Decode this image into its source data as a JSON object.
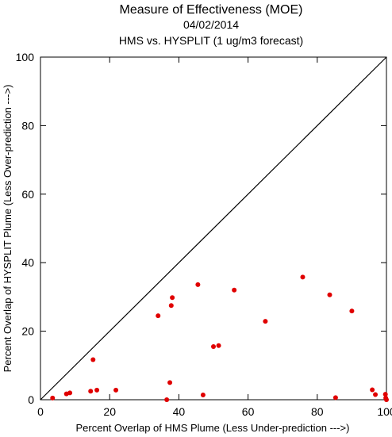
{
  "chart_data": {
    "type": "scatter",
    "title": "Measure of Effectiveness (MOE)",
    "subtitle_date": "04/02/2014",
    "subtitle": "HMS vs. HYSPLIT  (1 ug/m3 forecast)",
    "xlabel": "Percent Overlap of HMS Plume (Less Under-prediction --->)",
    "ylabel": "Percent Overlap of HYSPLIT Plume (Less Over-prediction --->)",
    "xlim": [
      0,
      100
    ],
    "ylim": [
      0,
      100
    ],
    "x_ticks": [
      "0",
      "20",
      "40",
      "60",
      "80",
      "100"
    ],
    "y_ticks": [
      "0",
      "20",
      "40",
      "60",
      "80",
      "100"
    ],
    "reference_line": "y = x",
    "marker_color": "#e00000",
    "grid": false,
    "points": [
      {
        "x": 3.5,
        "y": 0.5
      },
      {
        "x": 7.5,
        "y": 1.7
      },
      {
        "x": 8.5,
        "y": 2.0
      },
      {
        "x": 14.5,
        "y": 2.5
      },
      {
        "x": 15.2,
        "y": 11.7
      },
      {
        "x": 16.3,
        "y": 2.8
      },
      {
        "x": 21.8,
        "y": 2.8
      },
      {
        "x": 34.0,
        "y": 24.5
      },
      {
        "x": 36.5,
        "y": 0.0
      },
      {
        "x": 37.4,
        "y": 5.0
      },
      {
        "x": 37.8,
        "y": 27.5
      },
      {
        "x": 38.1,
        "y": 29.8
      },
      {
        "x": 45.5,
        "y": 33.6
      },
      {
        "x": 47.0,
        "y": 1.4
      },
      {
        "x": 50.0,
        "y": 15.5
      },
      {
        "x": 51.5,
        "y": 15.8
      },
      {
        "x": 56.0,
        "y": 32.0
      },
      {
        "x": 65.0,
        "y": 22.9
      },
      {
        "x": 75.8,
        "y": 35.8
      },
      {
        "x": 83.6,
        "y": 30.6
      },
      {
        "x": 85.3,
        "y": 0.6
      },
      {
        "x": 90.0,
        "y": 25.9
      },
      {
        "x": 95.9,
        "y": 2.9
      },
      {
        "x": 96.8,
        "y": 1.5
      },
      {
        "x": 99.7,
        "y": 1.6
      },
      {
        "x": 99.8,
        "y": 0.5
      },
      {
        "x": 100.0,
        "y": 0.0
      }
    ]
  }
}
